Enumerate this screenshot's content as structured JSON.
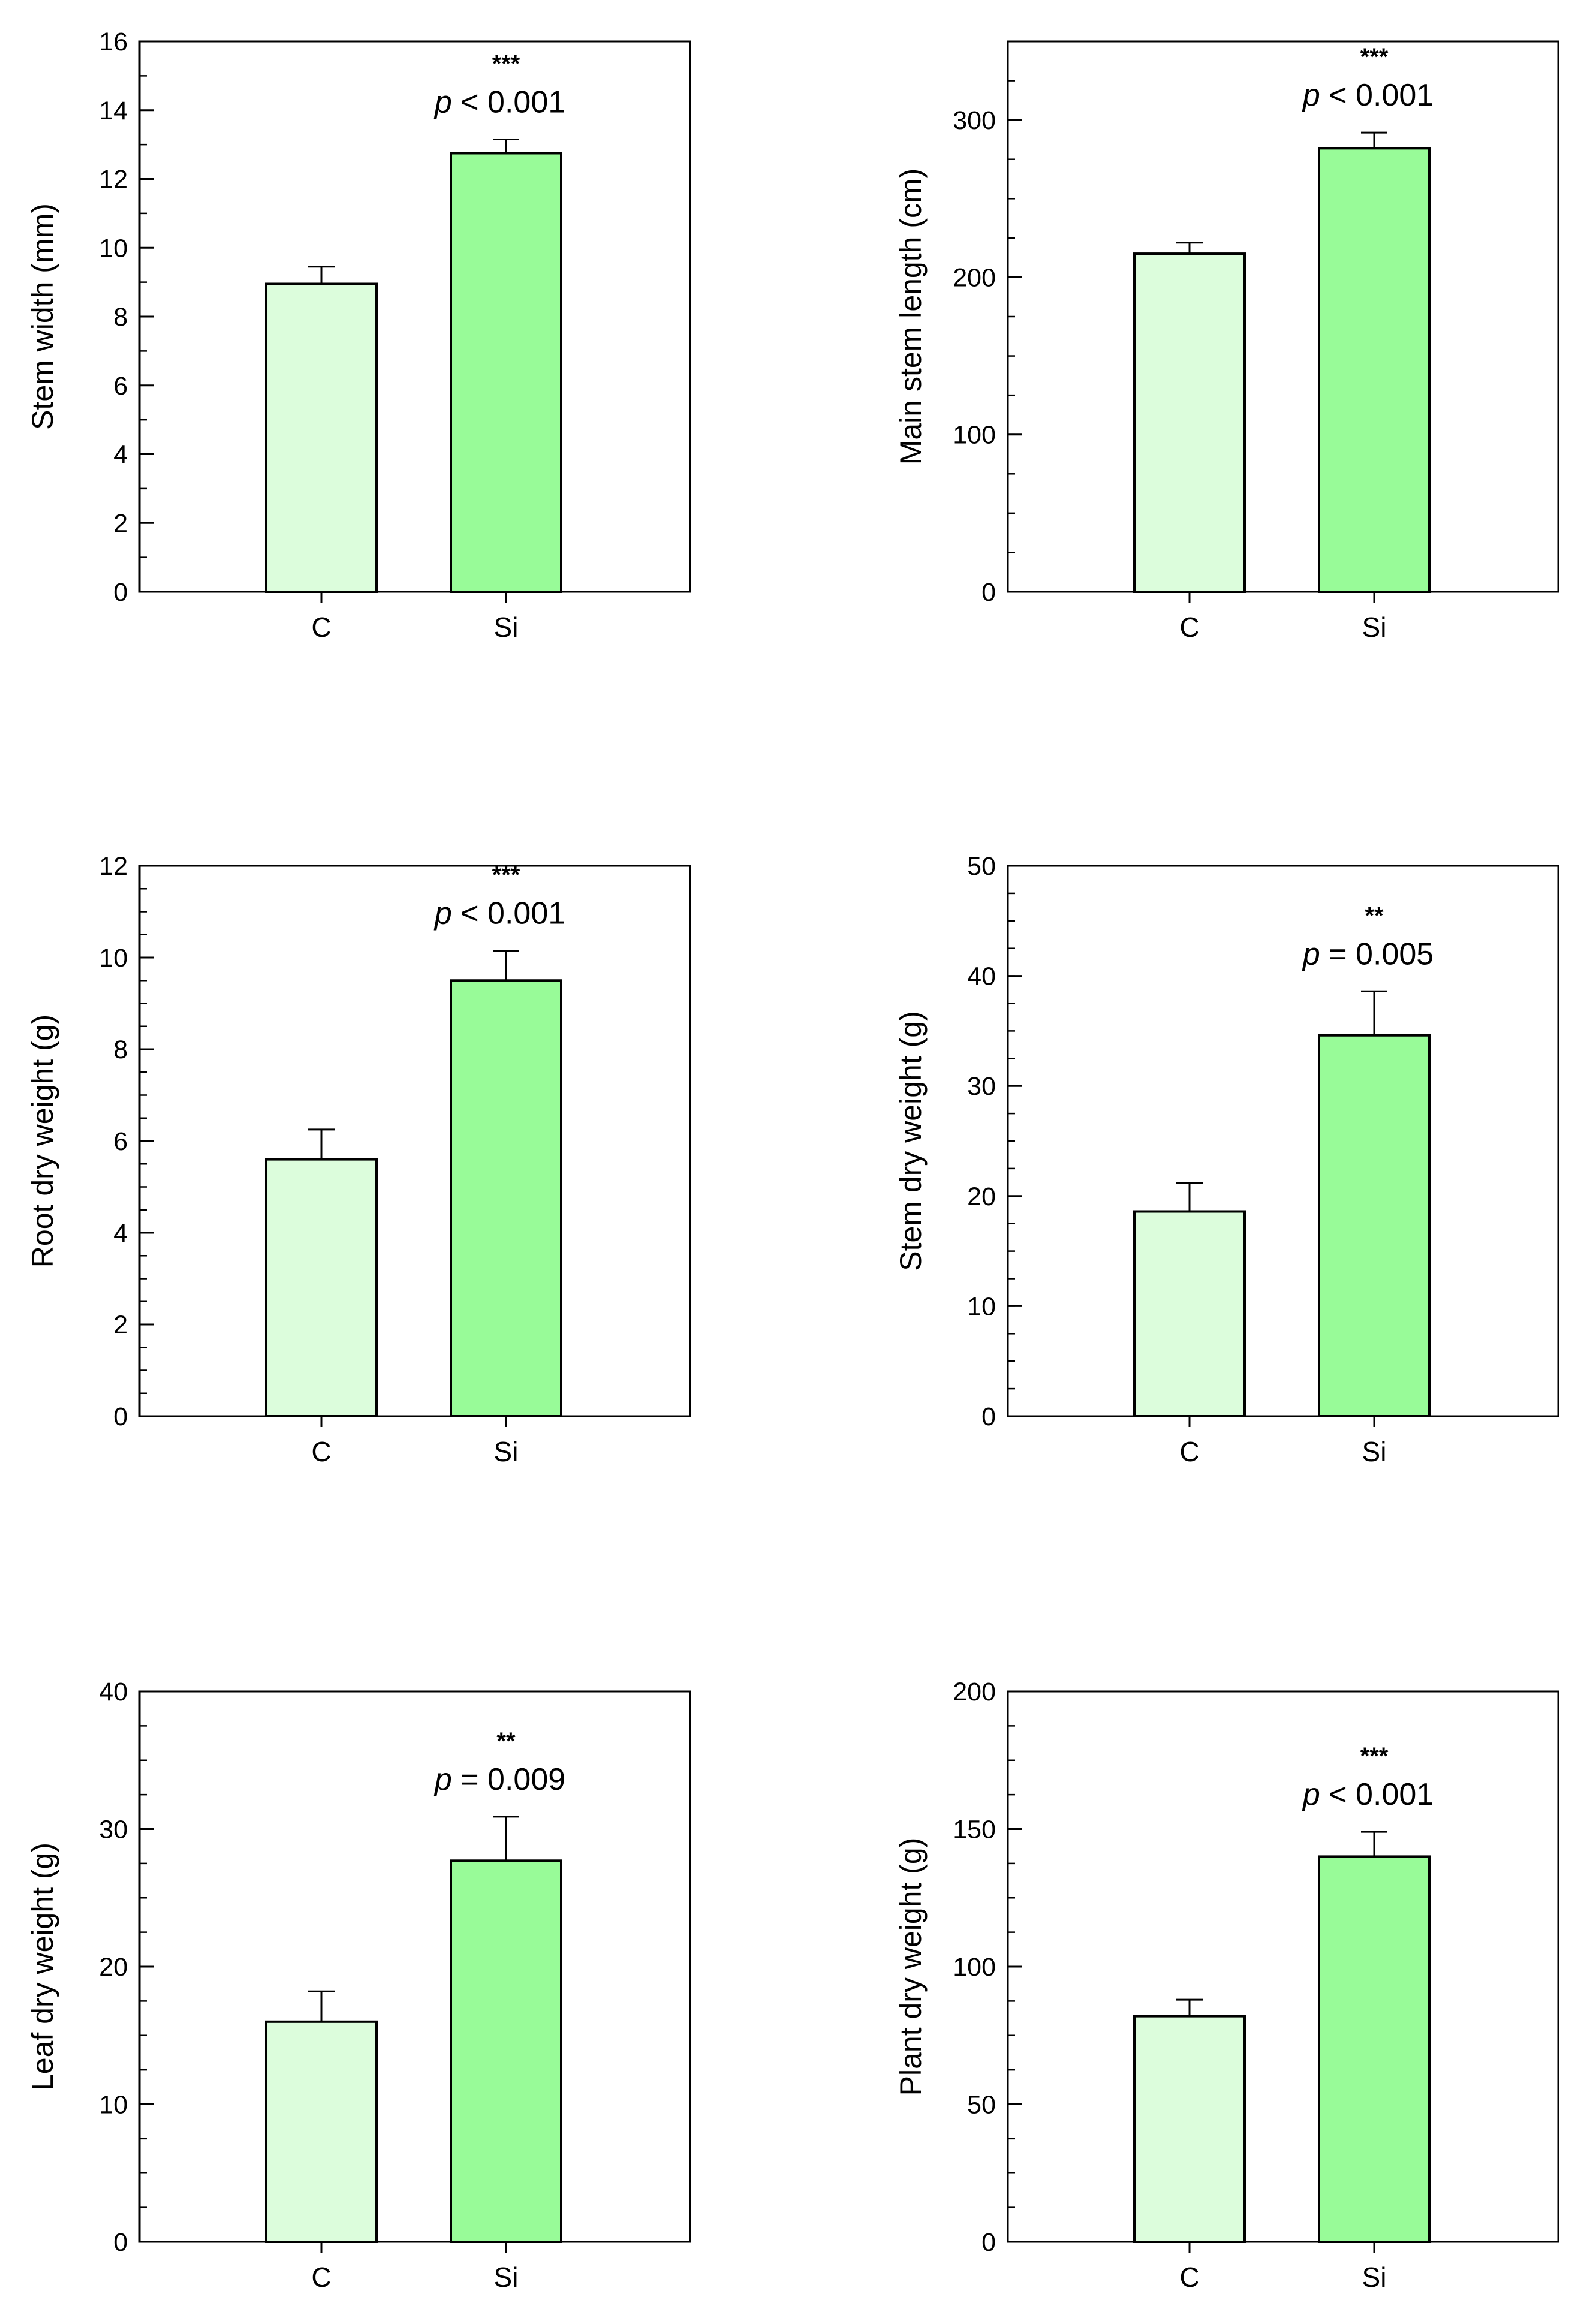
{
  "colors": {
    "control": "#dcfddc",
    "treatment": "#98fb98",
    "stroke": "#000000",
    "background": "#ffffff"
  },
  "chart_data": [
    {
      "type": "bar",
      "ylabel": "Stem width (mm)",
      "categories": [
        "C",
        "Si"
      ],
      "values": [
        8.95,
        12.75
      ],
      "errors": [
        0.5,
        0.4
      ],
      "ylim": [
        0,
        16
      ],
      "ticks": [
        0,
        2,
        4,
        6,
        8,
        10,
        12,
        14,
        16
      ],
      "tick_labels": [
        "0",
        "2",
        "4",
        "6",
        "8",
        "10",
        "12",
        "14",
        "16"
      ],
      "minor_step": 1,
      "significance": "***",
      "p_prefix": "p",
      "p_text": " < 0.001",
      "grid": false
    },
    {
      "type": "bar",
      "ylabel": "Main stem length (cm)",
      "categories": [
        "C",
        "Si"
      ],
      "values": [
        215,
        282
      ],
      "errors": [
        7,
        10
      ],
      "ylim": [
        0,
        350
      ],
      "ticks": [
        0,
        100,
        200,
        300
      ],
      "tick_labels": [
        "0",
        "100",
        "200",
        "300"
      ],
      "minor_step": 25,
      "significance": "***",
      "p_prefix": "p",
      "p_text": " < 0.001",
      "grid": false
    },
    {
      "type": "bar",
      "ylabel": "Root dry weight (g)",
      "categories": [
        "C",
        "Si"
      ],
      "values": [
        5.6,
        9.5
      ],
      "errors": [
        0.65,
        0.65
      ],
      "ylim": [
        0,
        12
      ],
      "ticks": [
        0,
        2,
        4,
        6,
        8,
        10,
        12
      ],
      "tick_labels": [
        "0",
        "2",
        "4",
        "6",
        "8",
        "10",
        "12"
      ],
      "minor_step": 0.5,
      "significance": "***",
      "p_prefix": "p",
      "p_text": " < 0.001",
      "grid": false
    },
    {
      "type": "bar",
      "ylabel": "Stem dry weight (g)",
      "categories": [
        "C",
        "Si"
      ],
      "values": [
        18.6,
        34.6
      ],
      "errors": [
        2.6,
        4.0
      ],
      "ylim": [
        0,
        50
      ],
      "ticks": [
        0,
        10,
        20,
        30,
        40,
        50
      ],
      "tick_labels": [
        "0",
        "10",
        "20",
        "30",
        "40",
        "50"
      ],
      "minor_step": 2.5,
      "significance": "**",
      "p_prefix": "p",
      "p_text": " = 0.005",
      "grid": false
    },
    {
      "type": "bar",
      "ylabel": "Leaf dry weight (g)",
      "categories": [
        "C",
        "Si"
      ],
      "values": [
        16.0,
        27.7
      ],
      "errors": [
        2.2,
        3.2
      ],
      "ylim": [
        0,
        40
      ],
      "ticks": [
        0,
        10,
        20,
        30,
        40
      ],
      "tick_labels": [
        "0",
        "10",
        "20",
        "30",
        "40"
      ],
      "minor_step": 2.5,
      "significance": "**",
      "p_prefix": "p",
      "p_text": " = 0.009",
      "grid": false
    },
    {
      "type": "bar",
      "ylabel": "Plant dry weight (g)",
      "categories": [
        "C",
        "Si"
      ],
      "values": [
        82,
        140
      ],
      "errors": [
        6,
        9
      ],
      "ylim": [
        0,
        200
      ],
      "ticks": [
        0,
        50,
        100,
        150,
        200
      ],
      "tick_labels": [
        "0",
        "50",
        "100",
        "150",
        "200"
      ],
      "minor_step": 12.5,
      "significance": "***",
      "p_prefix": "p",
      "p_text": " < 0.001",
      "grid": false
    }
  ]
}
